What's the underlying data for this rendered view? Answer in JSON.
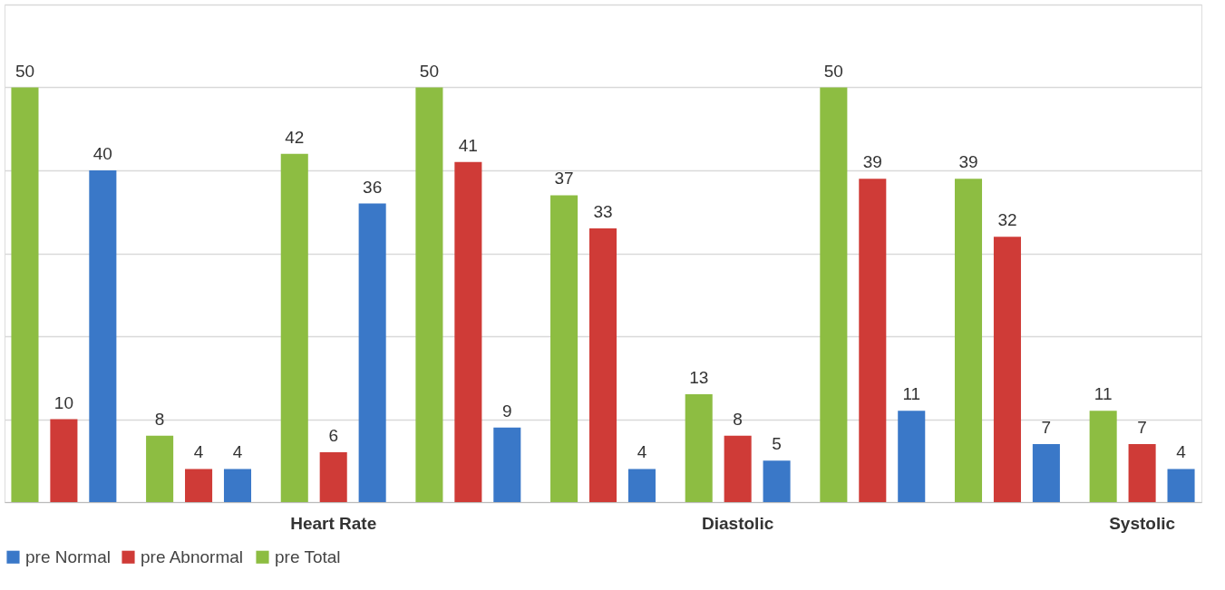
{
  "chart_data": {
    "type": "bar",
    "categories": [
      null,
      null,
      "Heart Rate",
      null,
      null,
      "Diastolic",
      null,
      null,
      "Systolic"
    ],
    "series": [
      {
        "name": "pre Normal",
        "color": "#3a78c8",
        "values": [
          40,
          4,
          36,
          9,
          4,
          5,
          11,
          7,
          4
        ]
      },
      {
        "name": "pre Abnormal",
        "color": "#cf3b37",
        "values": [
          10,
          4,
          6,
          41,
          33,
          8,
          39,
          32,
          7
        ]
      },
      {
        "name": "pre Total",
        "color": "#8dbd42",
        "values": [
          50,
          8,
          42,
          50,
          37,
          13,
          50,
          39,
          11
        ]
      }
    ],
    "ylim": [
      0,
      60
    ],
    "yticks": [
      {
        "value": 0,
        "label": null
      },
      {
        "value": 10,
        "label": null
      },
      {
        "value": 20,
        "label": null
      },
      {
        "value": 30,
        "label": null
      },
      {
        "value": 40,
        "label": null
      },
      {
        "value": 50,
        "label": null
      },
      {
        "value": 60,
        "label": null
      }
    ],
    "tick_labels": "x",
    "grid": "y",
    "legend": "bottom",
    "data_labels": true
  }
}
